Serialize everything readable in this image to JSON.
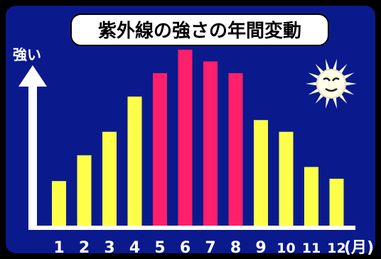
{
  "chart_data": {
    "type": "bar",
    "title": "紫外線の強さの年間変動",
    "ylabel": "強い",
    "xunit": "(月)",
    "categories": [
      "1",
      "2",
      "3",
      "4",
      "5",
      "6",
      "7",
      "8",
      "9",
      "10",
      "11",
      "12"
    ],
    "values": [
      3.8,
      6.0,
      8.0,
      11.0,
      13.0,
      15.0,
      14.0,
      13.0,
      9.0,
      8.0,
      5.0,
      4.0
    ],
    "ylim": [
      0,
      15
    ],
    "grid": false,
    "legend": "none",
    "colors": {
      "background": "#0a1a8c",
      "frame": "#000000",
      "bar_normal": "#ffff4a",
      "bar_peak": "#ff1f6b",
      "axis": "#ffffff",
      "title_box": "#ffffff",
      "title_text": "#000000",
      "sun": "#fffde8"
    },
    "peak_months": [
      "5",
      "6",
      "7",
      "8"
    ],
    "icon": "sun-icon"
  }
}
